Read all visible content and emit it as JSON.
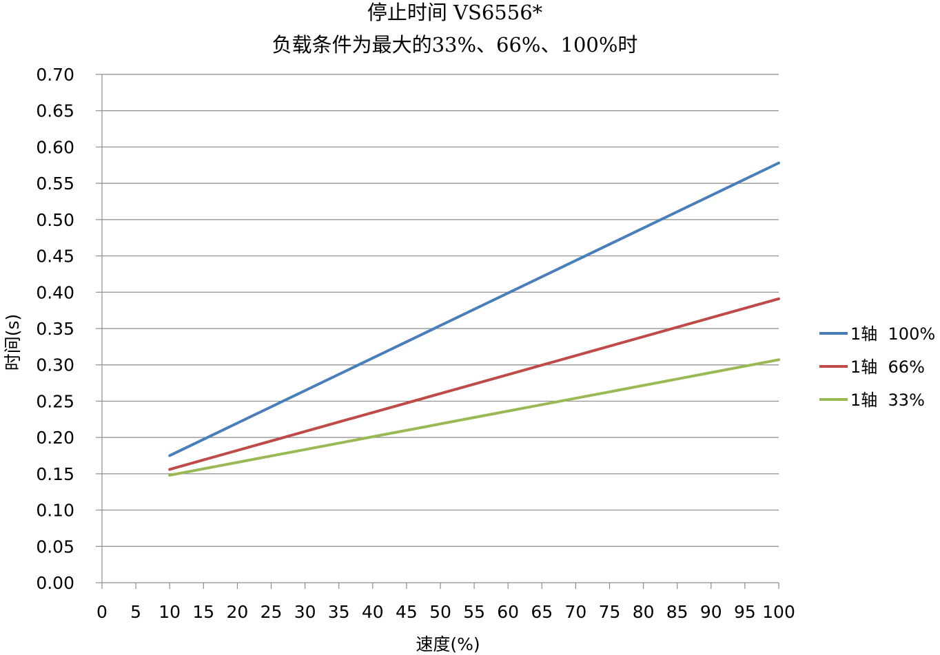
{
  "chart_data": {
    "type": "line",
    "title": "停止时间 VS6556*",
    "subtitle": "负载条件为最大的33%、66%、100%时",
    "xlabel": "速度(%)",
    "ylabel": "时间(s)",
    "xlim": [
      0,
      100
    ],
    "ylim": [
      0,
      0.7
    ],
    "x_ticks": [
      "0",
      "5",
      "10",
      "15",
      "20",
      "25",
      "30",
      "35",
      "40",
      "45",
      "50",
      "55",
      "60",
      "65",
      "70",
      "75",
      "80",
      "85",
      "90",
      "95",
      "100"
    ],
    "y_ticks": [
      "0.00",
      "0.05",
      "0.10",
      "0.15",
      "0.20",
      "0.25",
      "0.30",
      "0.35",
      "0.40",
      "0.45",
      "0.50",
      "0.55",
      "0.60",
      "0.65",
      "0.70"
    ],
    "grid": "horizontal",
    "legend_position": "right",
    "series": [
      {
        "name": "1轴  100%",
        "color": "#4a7ebb",
        "x": [
          10,
          100
        ],
        "y": [
          0.175,
          0.578
        ]
      },
      {
        "name": "1轴  66%",
        "color": "#be4b48",
        "x": [
          10,
          100
        ],
        "y": [
          0.156,
          0.391
        ]
      },
      {
        "name": "1轴  33%",
        "color": "#98b954",
        "x": [
          10,
          100
        ],
        "y": [
          0.148,
          0.307
        ]
      }
    ]
  }
}
